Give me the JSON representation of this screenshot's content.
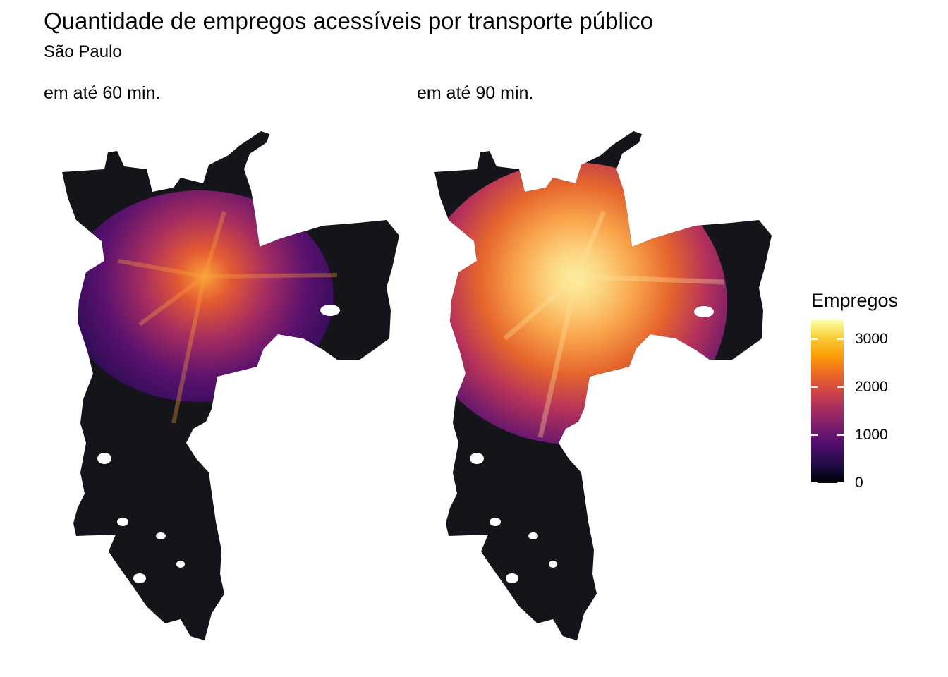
{
  "title": "Quantidade de empregos acessíveis por transporte público",
  "subtitle": "São Paulo",
  "facets": [
    {
      "label": "em até 60 min."
    },
    {
      "label": "em até 90 min."
    }
  ],
  "legend": {
    "title": "Empregos",
    "ticks": [
      {
        "value": 3000,
        "label": "3000"
      },
      {
        "value": 2000,
        "label": "2000"
      },
      {
        "value": 1000,
        "label": "1000"
      },
      {
        "value": 0,
        "label": "0"
      }
    ],
    "max": 3400,
    "palette": [
      "#000004",
      "#1b0c41",
      "#4a0c6b",
      "#781c6d",
      "#a52c60",
      "#cf4446",
      "#ed6925",
      "#fb9b06",
      "#f7d13d",
      "#fcffa4"
    ]
  }
}
